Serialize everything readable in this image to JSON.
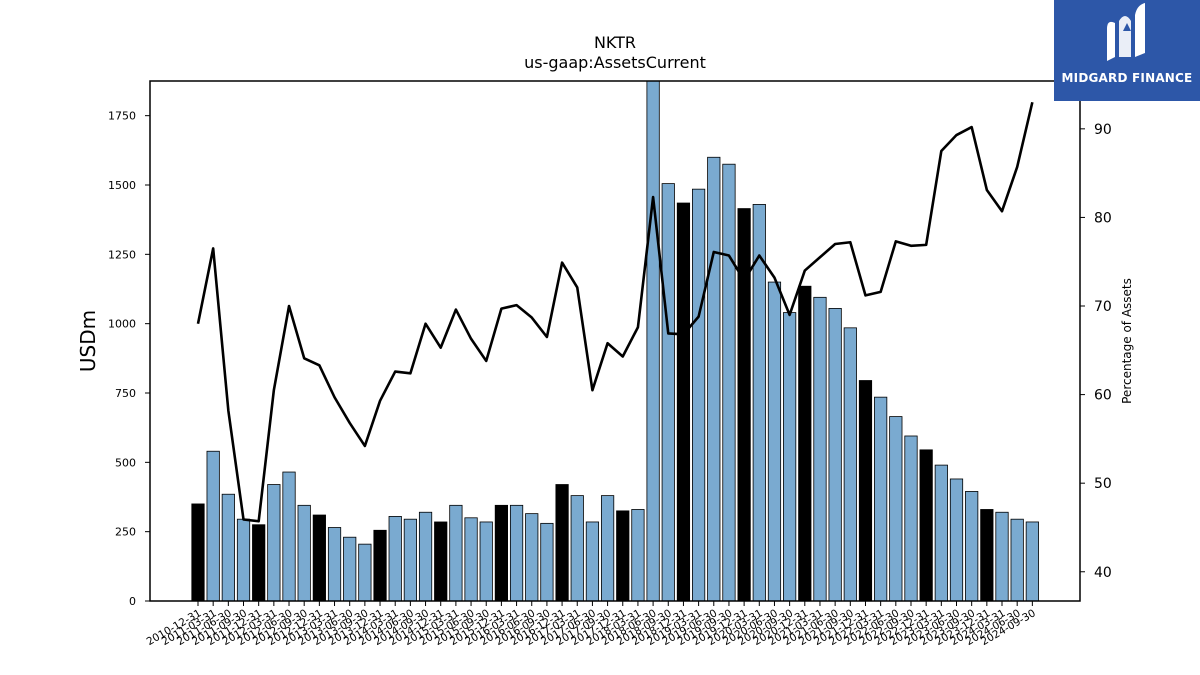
{
  "brand": {
    "name": "MIDGARD FINANCE",
    "bg_color": "#2d57a8"
  },
  "chart_data": {
    "type": "bar",
    "title": "NKTR",
    "subtitle": "us-gaap:AssetsCurrent",
    "ylabel": "USDm",
    "y2label": "Percentage of Assets",
    "ylim": [
      0,
      1875
    ],
    "y2lim": [
      36.7,
      95.4
    ],
    "yticks": [
      0,
      250,
      500,
      750,
      1000,
      1250,
      1500,
      1750
    ],
    "y2ticks": [
      40,
      50,
      60,
      70,
      80,
      90
    ],
    "grid": false,
    "colors": {
      "bar_quarter": "#7aaad0",
      "bar_year_end": "#000000",
      "line": "#000000"
    },
    "categories": [
      "2010-12-31",
      "2011-03-31",
      "2011-06-30",
      "2011-09-30",
      "2011-12-31",
      "2012-03-31",
      "2012-06-30",
      "2012-09-30",
      "2012-12-31",
      "2013-03-31",
      "2013-06-30",
      "2013-09-30",
      "2013-12-31",
      "2014-03-31",
      "2014-06-30",
      "2014-09-30",
      "2014-12-31",
      "2015-03-31",
      "2015-06-30",
      "2015-09-30",
      "2015-12-31",
      "2016-03-31",
      "2016-06-30",
      "2016-09-30",
      "2016-12-31",
      "2017-03-31",
      "2017-06-30",
      "2017-09-30",
      "2017-12-31",
      "2018-03-31",
      "2018-06-30",
      "2018-09-30",
      "2018-12-31",
      "2019-03-31",
      "2019-06-30",
      "2019-09-30",
      "2019-12-31",
      "2020-03-31",
      "2020-06-30",
      "2020-09-30",
      "2020-12-31",
      "2021-03-31",
      "2021-06-30",
      "2021-09-30",
      "2021-12-31",
      "2022-03-31",
      "2022-06-30",
      "2022-09-30",
      "2022-12-31",
      "2023-03-31",
      "2023-06-30",
      "2023-09-30",
      "2023-12-31",
      "2024-03-31",
      "2024-06-30",
      "2024-09-30"
    ],
    "series": [
      {
        "type": "bar",
        "axis": "left",
        "values": [
          350,
          540,
          385,
          295,
          275,
          420,
          465,
          345,
          310,
          265,
          230,
          205,
          255,
          305,
          295,
          320,
          285,
          345,
          300,
          285,
          345,
          345,
          315,
          280,
          420,
          380,
          285,
          380,
          325,
          330,
          1880,
          1505,
          1435,
          1485,
          1600,
          1575,
          1415,
          1430,
          1150,
          1040,
          1135,
          1095,
          1055,
          985,
          795,
          735,
          665,
          595,
          545,
          490,
          440,
          395,
          330,
          320,
          295,
          285
        ]
      },
      {
        "type": "line",
        "axis": "right",
        "values": [
          68.0,
          76.5,
          58.2,
          45.9,
          45.7,
          60.5,
          70.0,
          64.1,
          63.3,
          59.7,
          56.8,
          54.2,
          59.3,
          62.6,
          62.4,
          68.0,
          65.3,
          69.6,
          66.3,
          63.8,
          69.7,
          70.1,
          68.7,
          66.5,
          74.9,
          72.1,
          60.5,
          65.8,
          64.3,
          67.6,
          82.3,
          66.9,
          66.8,
          68.8,
          76.1,
          75.7,
          72.9,
          75.7,
          73.2,
          69.0,
          74.0,
          75.5,
          77.0,
          77.2,
          71.2,
          71.6,
          77.3,
          76.8,
          76.9,
          87.5,
          89.3,
          90.2,
          83.1,
          80.7,
          85.7,
          93.0
        ]
      }
    ]
  }
}
